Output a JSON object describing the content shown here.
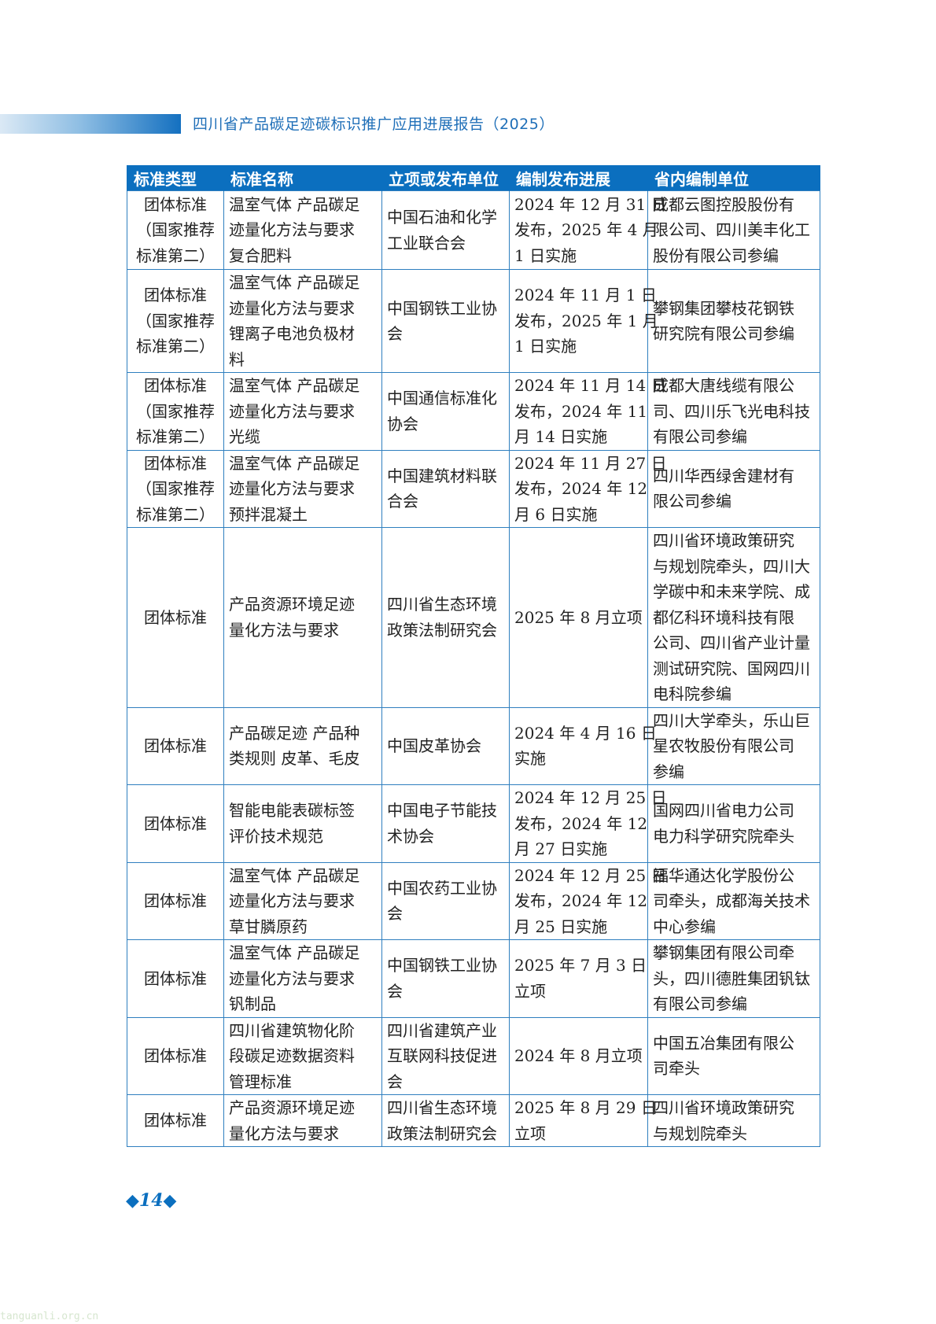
{
  "header": {
    "title": "四川省产品碳足迹碳标识推广应用进展报告（2025）"
  },
  "table": {
    "columns": [
      "标准类型",
      "标准名称",
      "立项或发布单位",
      "编制发布进展",
      "省内编制单位"
    ],
    "rows": [
      {
        "type": "团体标准\n（国家推荐\n标准第二）",
        "name": "温室气体 产品碳足\n迹量化方法与要求\n复合肥料",
        "org": "中国石油和化学\n工业联合会",
        "progress": "2024 年 12 月 31 日\n发布，2025 年 4 月\n1 日实施",
        "units": "成都云图控股股份有\n限公司、四川美丰化工\n股份有限公司参编"
      },
      {
        "type": "团体标准\n（国家推荐\n标准第二）",
        "name": "温室气体 产品碳足\n迹量化方法与要求\n锂离子电池负极材\n料",
        "org": "中国钢铁工业协\n会",
        "progress": "2024 年 11 月 1 日\n发布，2025 年 1 月\n1 日实施",
        "units": "攀钢集团攀枝花钢铁\n研究院有限公司参编"
      },
      {
        "type": "团体标准\n（国家推荐\n标准第二）",
        "name": "温室气体 产品碳足\n迹量化方法与要求\n光缆",
        "org": "中国通信标准化\n协会",
        "progress": "2024 年 11 月 14 日\n发布，2024 年 11\n月 14 日实施",
        "units": "成都大唐线缆有限公\n司、四川乐飞光电科技\n有限公司参编"
      },
      {
        "type": "团体标准\n（国家推荐\n标准第二）",
        "name": "温室气体 产品碳足\n迹量化方法与要求\n预拌混凝土",
        "org": "中国建筑材料联\n合会",
        "progress": "2024 年 11 月 27 日\n发布，2024 年 12\n月 6 日实施",
        "units": "四川华西绿舍建材有\n限公司参编"
      },
      {
        "type": "团体标准",
        "name": "产品资源环境足迹\n量化方法与要求",
        "org": "四川省生态环境\n政策法制研究会",
        "progress": "2025 年 8 月立项",
        "units": "四川省环境政策研究\n与规划院牵头，四川大\n学碳中和未来学院、成\n都亿科环境科技有限\n公司、四川省产业计量\n测试研究院、国网四川\n电科院参编"
      },
      {
        "type": "团体标准",
        "name": "产品碳足迹 产品种\n类规则 皮革、毛皮",
        "org": "中国皮革协会",
        "progress": "2024 年 4 月 16 日\n实施",
        "units": "四川大学牵头，乐山巨\n星农牧股份有限公司\n参编"
      },
      {
        "type": "团体标准",
        "name": "智能电能表碳标签\n评价技术规范",
        "org": "中国电子节能技\n术协会",
        "progress": "2024 年 12 月 25 日\n发布，2024 年 12\n月 27 日实施",
        "units": "国网四川省电力公司\n电力科学研究院牵头"
      },
      {
        "type": "团体标准",
        "name": "温室气体 产品碳足\n迹量化方法与要求\n草甘膦原药",
        "org": "中国农药工业协\n会",
        "progress": "2024 年 12 月 25 日\n发布，2024 年 12\n月 25 日实施",
        "units": "福华通达化学股份公\n司牵头，成都海关技术\n中心参编"
      },
      {
        "type": "团体标准",
        "name": "温室气体 产品碳足\n迹量化方法与要求\n钒制品",
        "org": "中国钢铁工业协\n会",
        "progress": "2025 年 7 月 3 日\n立项",
        "units": "攀钢集团有限公司牵\n头，四川德胜集团钒钛\n有限公司参编"
      },
      {
        "type": "团体标准",
        "name": "四川省建筑物化阶\n段碳足迹数据资料\n管理标准",
        "org": "四川省建筑产业\n互联网科技促进\n会",
        "progress": "2024 年 8 月立项",
        "units": "中国五冶集团有限公\n司牵头"
      },
      {
        "type": "团体标准",
        "name": "产品资源环境足迹\n量化方法与要求",
        "org": "四川省生态环境\n政策法制研究会",
        "progress": "2025 年 8 月 29 日\n立项",
        "units": "四川省环境政策研究\n与规划院牵头"
      }
    ]
  },
  "footer": {
    "page_number": "14",
    "diamond_icon": "diamond-icon"
  },
  "watermark": "tanguanli.org.cn",
  "colors": {
    "accent": "#0b6fbf",
    "border": "#2f7fbf"
  }
}
